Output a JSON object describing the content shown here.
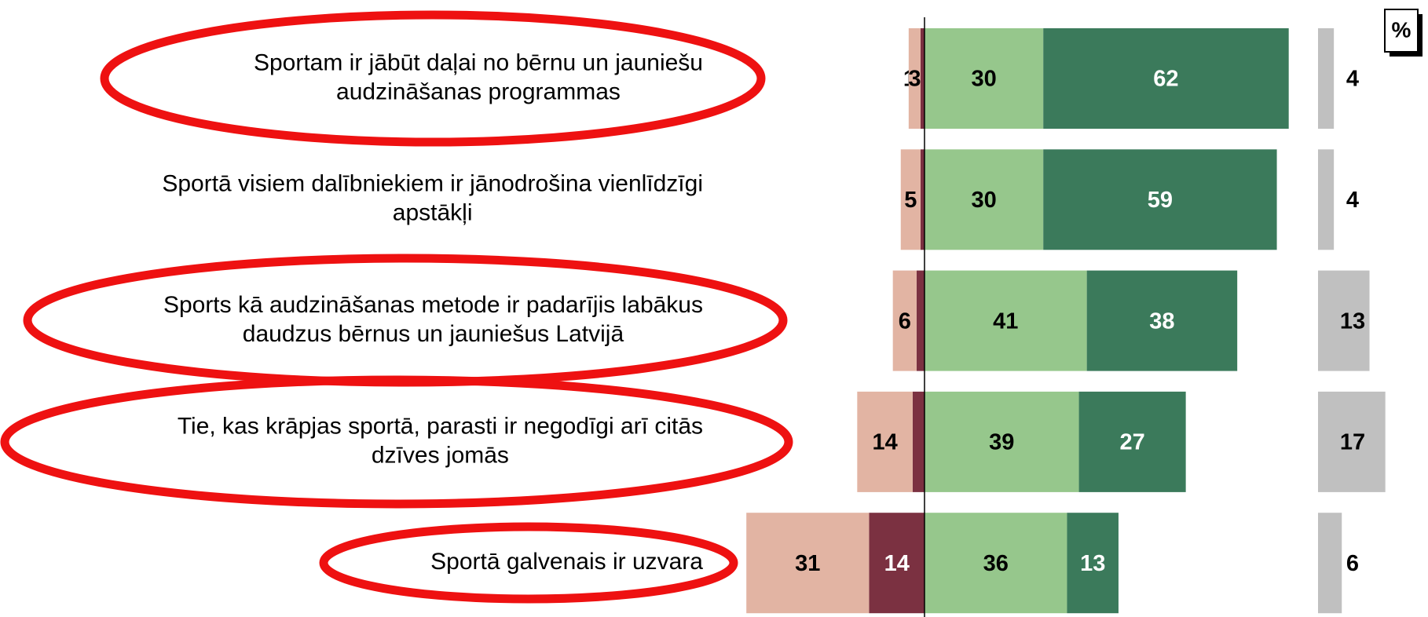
{
  "chart_data": {
    "type": "diverging-bar",
    "unit_label": "%",
    "categories": [
      [
        "Sportam ir jābūt daļai no bērnu un jauniešu",
        "audzināšanas programmas"
      ],
      [
        "Sportā visiem dalībniekiem ir jānodrošina vienlīdzīgi",
        "apstākļi"
      ],
      [
        "Sports kā audzināšanas metode ir padarījis labākus",
        "daudzus bērnus un jauniešus Latvijā"
      ],
      [
        "Tie, kas krāpjas sportā, parasti ir negodīgi arī citās",
        "dzīves jomās"
      ],
      [
        "Sportā galvenais ir uzvara"
      ]
    ],
    "series": [
      {
        "color": "#7b3141",
        "label_color": "#ffffff",
        "stack": "left",
        "values": [
          1,
          1,
          2,
          3,
          14
        ]
      },
      {
        "color": "#e2b4a3",
        "label_color": "#000000",
        "stack": "left",
        "values": [
          3,
          5,
          6,
          14,
          31
        ]
      },
      {
        "color": "#96c78c",
        "label_color": "#000000",
        "stack": "right",
        "values": [
          30,
          30,
          41,
          39,
          36
        ]
      },
      {
        "color": "#3b7a5b",
        "label_color": "#ffffff",
        "stack": "right",
        "values": [
          62,
          59,
          38,
          27,
          13
        ]
      },
      {
        "color": "#c0c0c0",
        "label_color": "#000000",
        "stack": "separate",
        "values": [
          4,
          4,
          13,
          17,
          6
        ]
      }
    ],
    "highlighted": [
      true,
      false,
      true,
      true,
      true
    ]
  }
}
